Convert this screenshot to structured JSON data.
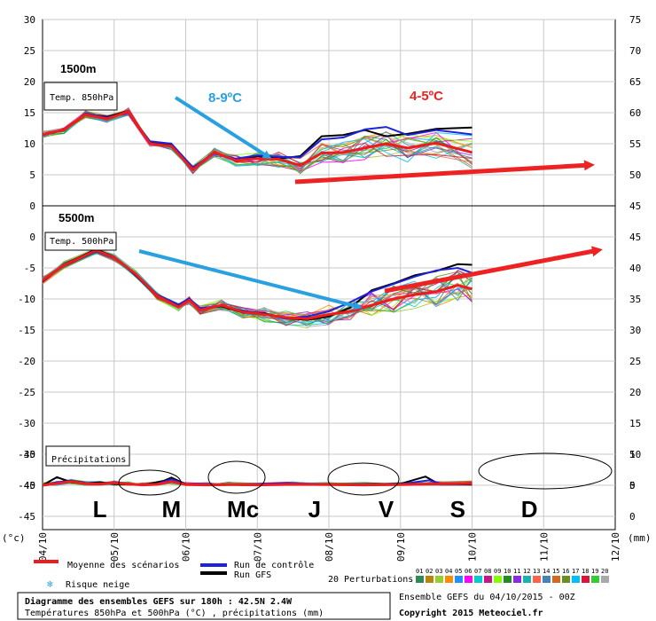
{
  "chart_data": {
    "type": "line",
    "x_dates": [
      "04/10",
      "05/10",
      "06/10",
      "07/10",
      "08/10",
      "09/10",
      "10/10",
      "11/10",
      "12/10"
    ],
    "panels": [
      {
        "id": "t850",
        "level_label": "1500m",
        "box_label": "Temp. 850hPa",
        "annotation_left": "8-9ºC",
        "annotation_right": "4-5ºC",
        "ylim": [
          0,
          30
        ],
        "yticks_left": [
          "30",
          "25",
          "20",
          "15",
          "10",
          "5",
          "0"
        ],
        "yticks_right": [
          "75",
          "70",
          "65",
          "60",
          "55",
          "50",
          "45"
        ],
        "mean": [
          [
            4.0,
            11.5
          ],
          [
            4.3,
            12.2
          ],
          [
            4.6,
            14.7
          ],
          [
            4.9,
            14.0
          ],
          [
            5.2,
            15.2
          ],
          [
            5.5,
            10.0
          ],
          [
            5.8,
            9.6
          ],
          [
            6.1,
            5.8
          ],
          [
            6.4,
            8.6
          ],
          [
            6.7,
            7.3
          ],
          [
            7.0,
            7.6
          ],
          [
            7.3,
            7.5
          ],
          [
            7.6,
            6.5
          ],
          [
            7.9,
            8.5
          ],
          [
            8.2,
            8.6
          ],
          [
            8.5,
            9.3
          ],
          [
            8.8,
            10.0
          ],
          [
            9.1,
            9.3
          ],
          [
            9.5,
            10.1
          ],
          [
            10.0,
            8.6
          ]
        ],
        "control": [
          [
            4.0,
            11.6
          ],
          [
            4.3,
            12.1
          ],
          [
            4.6,
            14.9
          ],
          [
            4.9,
            14.2
          ],
          [
            5.2,
            15.0
          ],
          [
            5.5,
            10.4
          ],
          [
            5.8,
            10.0
          ],
          [
            6.1,
            6.2
          ],
          [
            6.4,
            8.4
          ],
          [
            6.7,
            7.6
          ],
          [
            7.0,
            8.1
          ],
          [
            7.3,
            7.9
          ],
          [
            7.6,
            7.8
          ],
          [
            7.9,
            10.7
          ],
          [
            8.2,
            11.0
          ],
          [
            8.5,
            12.3
          ],
          [
            8.8,
            12.7
          ],
          [
            9.1,
            11.4
          ],
          [
            9.5,
            12.2
          ],
          [
            10.0,
            11.5
          ]
        ],
        "gfs": [
          [
            4.0,
            11.4
          ],
          [
            4.3,
            12.3
          ],
          [
            4.6,
            14.8
          ],
          [
            4.9,
            14.3
          ],
          [
            5.2,
            15.3
          ],
          [
            5.5,
            10.1
          ],
          [
            5.8,
            9.9
          ],
          [
            6.1,
            5.9
          ],
          [
            6.4,
            8.7
          ],
          [
            6.7,
            7.2
          ],
          [
            7.0,
            8.0
          ],
          [
            7.3,
            7.6
          ],
          [
            7.6,
            8.0
          ],
          [
            7.9,
            11.2
          ],
          [
            8.2,
            11.4
          ],
          [
            8.5,
            12.2
          ],
          [
            8.8,
            11.2
          ],
          [
            9.1,
            11.6
          ],
          [
            9.5,
            12.4
          ],
          [
            10.0,
            12.6
          ]
        ]
      },
      {
        "id": "t500",
        "level_label": "5500m",
        "box_label": "Temp. 500hPa",
        "ylim": [
          -50,
          0
        ],
        "yticks_left": [
          "0",
          "-5",
          "-10",
          "-15",
          "-20",
          "-25",
          "-30",
          "-35",
          "-40",
          "-45"
        ],
        "yticks_right": [
          "45",
          "40",
          "35",
          "30",
          "25",
          "20",
          "15",
          "10",
          "5",
          "0"
        ],
        "mean": [
          [
            4.0,
            -12.0
          ],
          [
            4.3,
            -9.5
          ],
          [
            4.75,
            -7.2
          ],
          [
            5.0,
            -8.3
          ],
          [
            5.3,
            -11.0
          ],
          [
            5.6,
            -14.5
          ],
          [
            5.9,
            -16.3
          ],
          [
            6.05,
            -15.2
          ],
          [
            6.2,
            -16.8
          ],
          [
            6.5,
            -16.0
          ],
          [
            6.8,
            -17.1
          ],
          [
            7.1,
            -17.5
          ],
          [
            7.4,
            -18.0
          ],
          [
            7.7,
            -18.2
          ],
          [
            8.0,
            -17.5
          ],
          [
            8.3,
            -17.0
          ],
          [
            8.6,
            -16.0
          ],
          [
            8.9,
            -15.0
          ],
          [
            9.2,
            -14.3
          ],
          [
            9.5,
            -13.8
          ],
          [
            9.8,
            -12.8
          ],
          [
            10.0,
            -13.4
          ]
        ],
        "control": [
          [
            4.0,
            -12.1
          ],
          [
            4.3,
            -9.6
          ],
          [
            4.75,
            -7.4
          ],
          [
            5.0,
            -8.4
          ],
          [
            5.3,
            -10.9
          ],
          [
            5.6,
            -14.3
          ],
          [
            5.9,
            -15.9
          ],
          [
            6.05,
            -14.9
          ],
          [
            6.2,
            -16.5
          ],
          [
            6.5,
            -16.1
          ],
          [
            6.8,
            -16.9
          ],
          [
            7.1,
            -17.4
          ],
          [
            7.4,
            -18.2
          ],
          [
            7.7,
            -17.8
          ],
          [
            8.0,
            -17.0
          ],
          [
            8.3,
            -15.5
          ],
          [
            8.6,
            -13.8
          ],
          [
            8.9,
            -12.6
          ],
          [
            9.2,
            -11.4
          ],
          [
            9.5,
            -10.4
          ],
          [
            9.8,
            -10.0
          ],
          [
            10.0,
            -10.8
          ]
        ],
        "gfs": [
          [
            4.0,
            -12.2
          ],
          [
            4.3,
            -9.4
          ],
          [
            4.75,
            -7.0
          ],
          [
            5.0,
            -8.2
          ],
          [
            5.3,
            -11.2
          ],
          [
            5.6,
            -14.6
          ],
          [
            5.9,
            -16.0
          ],
          [
            6.05,
            -15.0
          ],
          [
            6.2,
            -16.6
          ],
          [
            6.5,
            -16.2
          ],
          [
            6.8,
            -17.2
          ],
          [
            7.1,
            -17.3
          ],
          [
            7.4,
            -18.1
          ],
          [
            7.7,
            -18.4
          ],
          [
            8.0,
            -17.8
          ],
          [
            8.3,
            -16.4
          ],
          [
            8.6,
            -13.6
          ],
          [
            8.9,
            -12.5
          ],
          [
            9.2,
            -11.2
          ],
          [
            9.5,
            -10.5
          ],
          [
            9.8,
            -9.4
          ],
          [
            10.0,
            -9.5
          ]
        ]
      },
      {
        "id": "precip",
        "box_label": "Précipitations",
        "ylim": [
          0,
          10
        ],
        "yticks_left": [
          "-40",
          "-45"
        ],
        "yticks_right": [
          "5",
          "0"
        ],
        "mean": [
          [
            4.0,
            0
          ],
          [
            4.2,
            0.6
          ],
          [
            4.4,
            1.2
          ],
          [
            4.6,
            0.5
          ],
          [
            4.8,
            0.4
          ],
          [
            5.0,
            0.8
          ],
          [
            5.2,
            0.4
          ],
          [
            5.4,
            0.1
          ],
          [
            5.6,
            0.3
          ],
          [
            5.8,
            1.2
          ],
          [
            6.0,
            0.2
          ],
          [
            6.3,
            0.1
          ],
          [
            6.6,
            0.2
          ],
          [
            7.0,
            0.1
          ],
          [
            7.5,
            0.3
          ],
          [
            8.0,
            0.2
          ],
          [
            8.5,
            0.1
          ],
          [
            9.0,
            0.2
          ],
          [
            9.5,
            0.4
          ],
          [
            10.0,
            0.6
          ]
        ],
        "control": [
          [
            4.0,
            0
          ],
          [
            4.2,
            1.0
          ],
          [
            4.4,
            1.5
          ],
          [
            4.6,
            0.8
          ],
          [
            4.8,
            0.5
          ],
          [
            5.0,
            1.0
          ],
          [
            5.2,
            0.3
          ],
          [
            5.6,
            0.4
          ],
          [
            5.8,
            2.0
          ],
          [
            6.0,
            0.3
          ],
          [
            6.6,
            0.1
          ],
          [
            7.4,
            0.7
          ],
          [
            8.0,
            0.2
          ],
          [
            9.0,
            0.4
          ],
          [
            9.4,
            1.6
          ],
          [
            9.6,
            0.3
          ],
          [
            10.0,
            0.4
          ]
        ],
        "gfs": [
          [
            4.0,
            0
          ],
          [
            4.2,
            2.6
          ],
          [
            4.4,
            1.0
          ],
          [
            4.6,
            0.6
          ],
          [
            4.8,
            1.0
          ],
          [
            5.0,
            0.4
          ],
          [
            5.4,
            0.1
          ],
          [
            5.7,
            1.5
          ],
          [
            5.8,
            2.5
          ],
          [
            6.0,
            0.4
          ],
          [
            6.8,
            0.1
          ],
          [
            7.4,
            0.2
          ],
          [
            8.0,
            0.2
          ],
          [
            9.0,
            0.5
          ],
          [
            9.35,
            2.8
          ],
          [
            9.55,
            0.2
          ],
          [
            10.0,
            0.2
          ]
        ]
      }
    ],
    "day_labels": [
      "L",
      "M",
      "Mc",
      "J",
      "V",
      "S",
      "D"
    ],
    "left_unit": "(°c)",
    "right_unit": "(mm)",
    "colors": {
      "mean": "#ee1c1c",
      "control": "#1e22d8",
      "gfs": "#000000",
      "arrow_blue": "#29a0e0",
      "arrow_red": "#ee2222"
    }
  },
  "legend": {
    "mean": "Moyenne des scénarios",
    "control": "Run de contrôle",
    "gfs": "Run GFS",
    "snow": "Risque neige",
    "perturbations_label": "20 Perturbations",
    "perturbation_numbers": [
      "01",
      "02",
      "03",
      "04",
      "05",
      "06",
      "07",
      "08",
      "09",
      "10",
      "11",
      "12",
      "13",
      "14",
      "15",
      "16",
      "17",
      "18",
      "19",
      "20"
    ],
    "perturbation_colors": [
      "#2e8b57",
      "#b8860b",
      "#9acd32",
      "#ff8c00",
      "#1e90ff",
      "#ff00ff",
      "#00ced1",
      "#c71585",
      "#7fff00",
      "#228b22",
      "#8a2be2",
      "#20b2aa",
      "#ff6347",
      "#4682b4",
      "#d2691e",
      "#6b8e23",
      "#00bfff",
      "#dc143c",
      "#32cd32",
      "#a9a9a9"
    ]
  },
  "footer": {
    "title": "Diagramme des ensembles GEFS sur 180h : 42.5N 2.4W",
    "subtitle": "Températures 850hPa et 500hPa (°C) , précipitations (mm)",
    "run": "Ensemble GEFS du 04/10/2015 - 00Z",
    "copyright": "Copyright 2015 Meteociel.fr"
  }
}
